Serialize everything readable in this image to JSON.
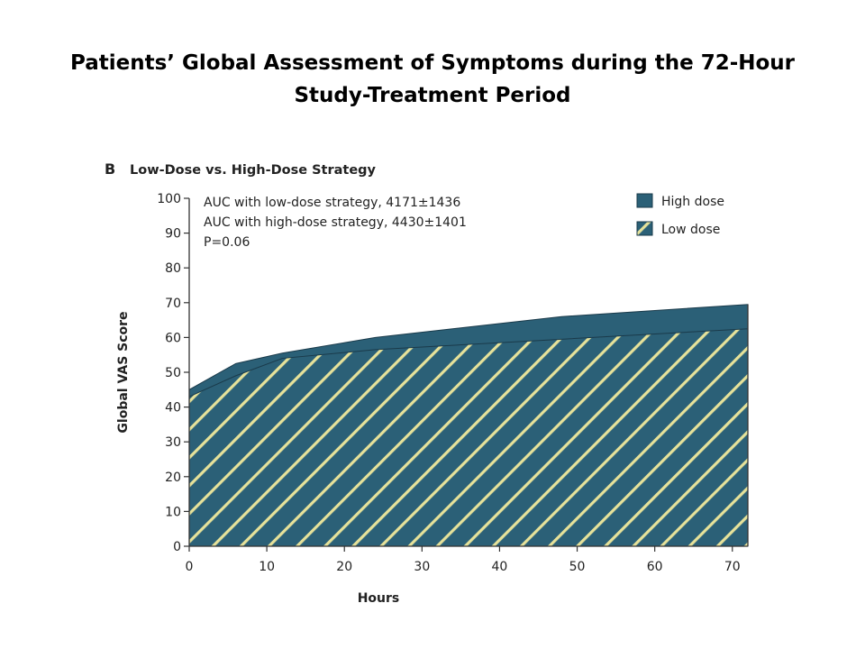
{
  "slide": {
    "title_line1": "Patients’ Global Assessment of Symptoms during the 72-Hour",
    "title_line2": "Study-Treatment Period"
  },
  "chart_data": {
    "type": "area",
    "panel_letter": "B",
    "title": "Low-Dose vs. High-Dose Strategy",
    "xlabel": "Hours",
    "ylabel": "Global VAS Score",
    "xlim": [
      0,
      72
    ],
    "ylim": [
      0,
      100
    ],
    "xticks": [
      0,
      10,
      20,
      30,
      40,
      50,
      60,
      70
    ],
    "yticks": [
      0,
      10,
      20,
      30,
      40,
      50,
      60,
      70,
      80,
      90,
      100
    ],
    "grid": false,
    "legend_position": "top-right",
    "annotations": [
      "AUC with low-dose strategy, 4171±1436",
      "AUC with high-dose strategy, 4430±1401",
      "P=0.06"
    ],
    "series": [
      {
        "name": "High dose",
        "color": "#2b6077",
        "pattern": "solid",
        "x": [
          0,
          6,
          12,
          24,
          48,
          72
        ],
        "values": [
          45,
          52.5,
          55.5,
          60,
          66,
          69.5
        ]
      },
      {
        "name": "Low dose",
        "color": "#e6e29a",
        "pattern": "hatched",
        "x": [
          0,
          6,
          12,
          24,
          48,
          72
        ],
        "values": [
          43,
          49,
          54,
          56.5,
          59.5,
          62.5
        ]
      }
    ]
  }
}
